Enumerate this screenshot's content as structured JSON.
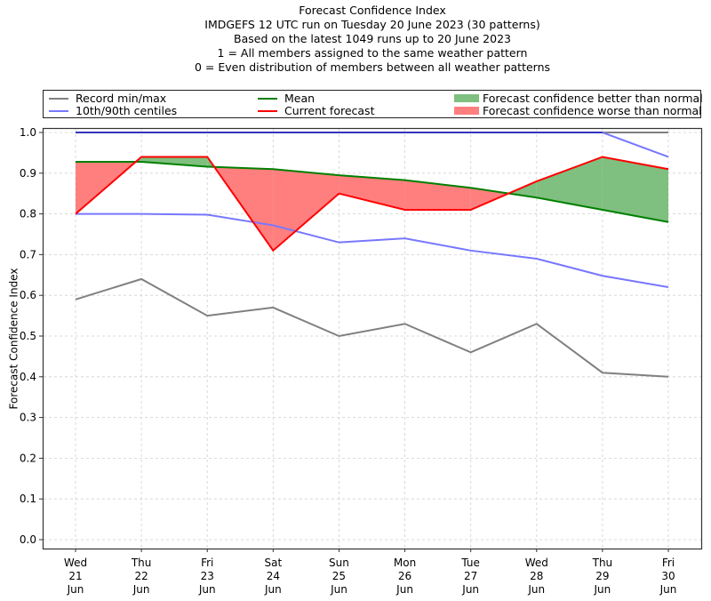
{
  "chart_data": {
    "type": "line",
    "title": "Forecast Confidence Index",
    "subtitle_lines": [
      "IMDGEFS 12 UTC run on Tuesday 20 June 2023 (30 patterns)",
      "Based on the latest 1049 runs up to 20 June 2023",
      "1 = All members assigned to the same weather pattern",
      "0 = Even distribution of members between all weather patterns"
    ],
    "xlabel": "",
    "ylabel": "Forecast Confidence Index",
    "ylim": [
      0.0,
      1.0
    ],
    "yticks": [
      "0.0",
      "0.1",
      "0.2",
      "0.3",
      "0.4",
      "0.5",
      "0.6",
      "0.7",
      "0.8",
      "0.9",
      "1.0"
    ],
    "ytick_values": [
      0.0,
      0.1,
      0.2,
      0.3,
      0.4,
      0.5,
      0.6,
      0.7,
      0.8,
      0.9,
      1.0
    ],
    "grid": true,
    "legend_position": "top",
    "categories": [
      [
        "Wed",
        "21",
        "Jun"
      ],
      [
        "Thu",
        "22",
        "Jun"
      ],
      [
        "Fri",
        "23",
        "Jun"
      ],
      [
        "Sat",
        "24",
        "Jun"
      ],
      [
        "Sun",
        "25",
        "Jun"
      ],
      [
        "Mon",
        "26",
        "Jun"
      ],
      [
        "Tue",
        "27",
        "Jun"
      ],
      [
        "Wed",
        "28",
        "Jun"
      ],
      [
        "Thu",
        "29",
        "Jun"
      ],
      [
        "Fri",
        "30",
        "Jun"
      ]
    ],
    "series": [
      {
        "name": "Record max",
        "legend": "Record min/max",
        "color": "#808080",
        "values": [
          1.0,
          1.0,
          1.0,
          1.0,
          1.0,
          1.0,
          1.0,
          1.0,
          1.0,
          1.0
        ]
      },
      {
        "name": "Record min",
        "legend": "Record min/max",
        "color": "#808080",
        "values": [
          0.59,
          0.64,
          0.55,
          0.57,
          0.5,
          0.53,
          0.46,
          0.53,
          0.41,
          0.4
        ]
      },
      {
        "name": "90th centile",
        "legend": "10th/90th centiles",
        "color": "#7777ff",
        "values": [
          1.0,
          1.0,
          1.0,
          1.0,
          1.0,
          1.0,
          1.0,
          1.0,
          1.0,
          0.94
        ]
      },
      {
        "name": "10th centile",
        "legend": "10th/90th centiles",
        "color": "#7777ff",
        "values": [
          0.8,
          0.8,
          0.798,
          0.772,
          0.73,
          0.74,
          0.71,
          0.69,
          0.648,
          0.62
        ]
      },
      {
        "name": "Mean",
        "legend": "Mean",
        "color": "#008000",
        "values": [
          0.928,
          0.928,
          0.916,
          0.91,
          0.895,
          0.883,
          0.864,
          0.84,
          0.81,
          0.78
        ]
      },
      {
        "name": "Current forecast",
        "legend": "Current forecast",
        "color": "#ff0000",
        "values": [
          0.8,
          0.94,
          0.94,
          0.71,
          0.85,
          0.81,
          0.81,
          0.88,
          0.94,
          0.91
        ]
      }
    ],
    "fills": [
      {
        "name": "Forecast confidence better than normal",
        "color": "#7fbf7f",
        "condition": "current > mean"
      },
      {
        "name": "Forecast confidence worse than normal",
        "color": "#ff7f7f",
        "condition": "current < mean"
      }
    ],
    "legend": [
      {
        "label": "Record min/max",
        "kind": "line",
        "color": "#808080"
      },
      {
        "label": "10th/90th centiles",
        "kind": "line",
        "color": "#7777ff"
      },
      {
        "label": "Mean",
        "kind": "line",
        "color": "#008000"
      },
      {
        "label": "Current forecast",
        "kind": "line",
        "color": "#ff0000"
      },
      {
        "label": "Forecast confidence better than normal",
        "kind": "patch",
        "color": "#7fbf7f"
      },
      {
        "label": "Forecast confidence worse than normal",
        "kind": "patch",
        "color": "#ff7f7f"
      }
    ]
  }
}
